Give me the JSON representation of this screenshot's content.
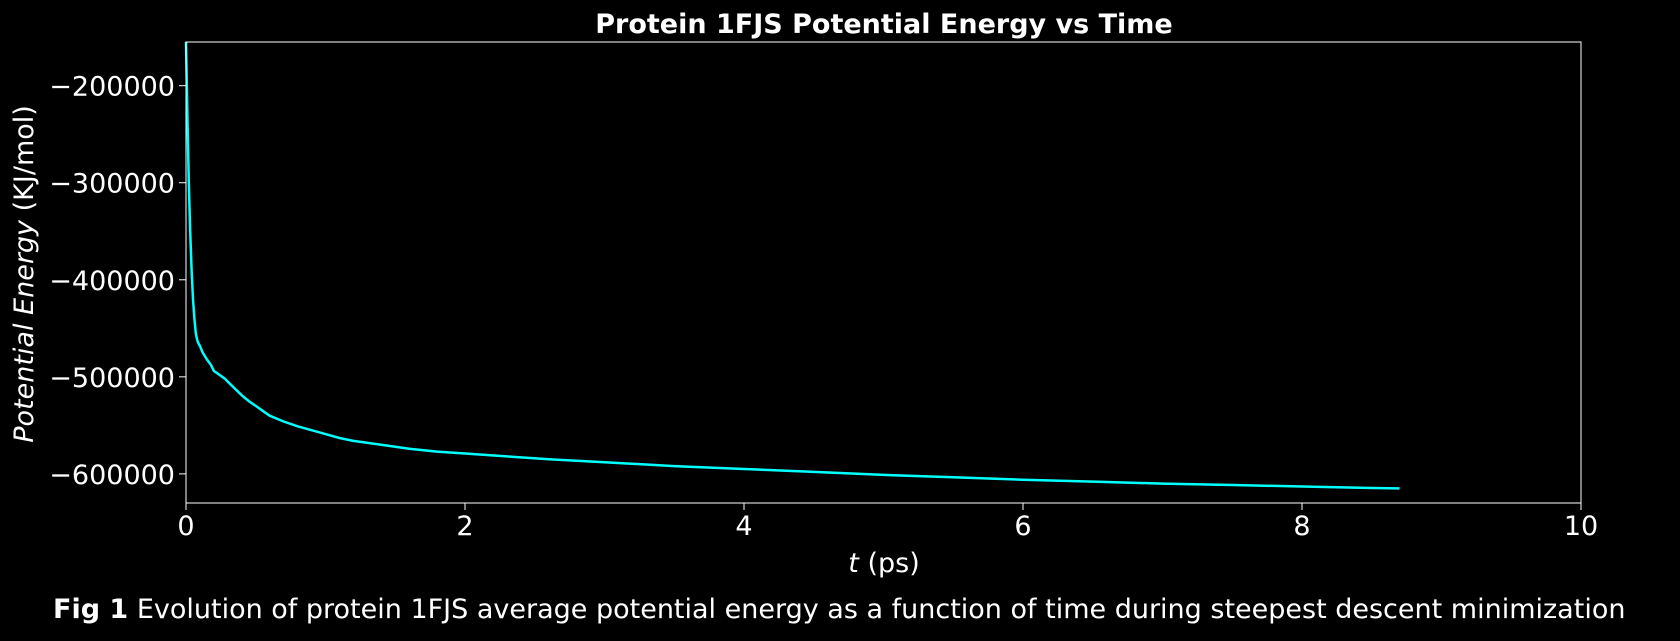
{
  "chart_data": {
    "type": "line",
    "title": "Protein 1FJS Potential Energy vs Time",
    "xlabel_var": "t",
    "xlabel_unit": "(ps)",
    "ylabel_var": "Potential Energy",
    "ylabel_unit": "(KJ/mol)",
    "xlim": [
      0,
      10
    ],
    "ylim": [
      -630000,
      -155000
    ],
    "xticks": [
      0,
      2,
      4,
      6,
      8,
      10
    ],
    "xtick_labels": [
      "0",
      "2",
      "4",
      "6",
      "8",
      "10"
    ],
    "yticks": [
      -200000,
      -300000,
      -400000,
      -500000,
      -600000
    ],
    "ytick_labels": [
      "−200000",
      "−300000",
      "−400000",
      "−500000",
      "−600000"
    ],
    "grid": false,
    "line_color": "#00ffff",
    "background_color": "#000000",
    "series": [
      {
        "x": [
          0,
          0.01,
          0.02,
          0.03,
          0.04,
          0.05,
          0.06,
          0.07,
          0.08,
          0.09,
          0.1,
          0.12,
          0.15,
          0.18,
          0.2,
          0.22,
          0.25,
          0.28,
          0.3,
          0.35,
          0.4,
          0.45,
          0.5,
          0.55,
          0.6,
          0.7,
          0.8,
          0.9,
          1.0,
          1.1,
          1.2,
          1.4,
          1.6,
          1.8,
          2.0,
          2.3,
          2.6,
          3.0,
          3.5,
          4.0,
          4.5,
          5.0,
          5.5,
          6.0,
          6.5,
          7.0,
          7.5,
          8.0,
          8.5,
          8.7
        ],
        "y": [
          -155000,
          -230000,
          -300000,
          -350000,
          -390000,
          -420000,
          -440000,
          -455000,
          -462000,
          -466000,
          -468000,
          -475000,
          -482000,
          -488000,
          -494000,
          -496000,
          -499000,
          -502000,
          -505000,
          -512000,
          -519000,
          -525000,
          -530000,
          -535000,
          -540000,
          -546000,
          -551000,
          -555000,
          -559000,
          -563000,
          -566000,
          -570000,
          -574000,
          -577000,
          -579000,
          -582000,
          -585000,
          -588000,
          -592000,
          -595000,
          -598000,
          -601000,
          -603500,
          -606000,
          -608000,
          -610000,
          -611500,
          -613000,
          -614500,
          -615000
        ]
      }
    ]
  },
  "caption": {
    "label": "Fig 1",
    "text": "Evolution of protein 1FJS average potential energy as a function of time during steepest descent minimization"
  }
}
